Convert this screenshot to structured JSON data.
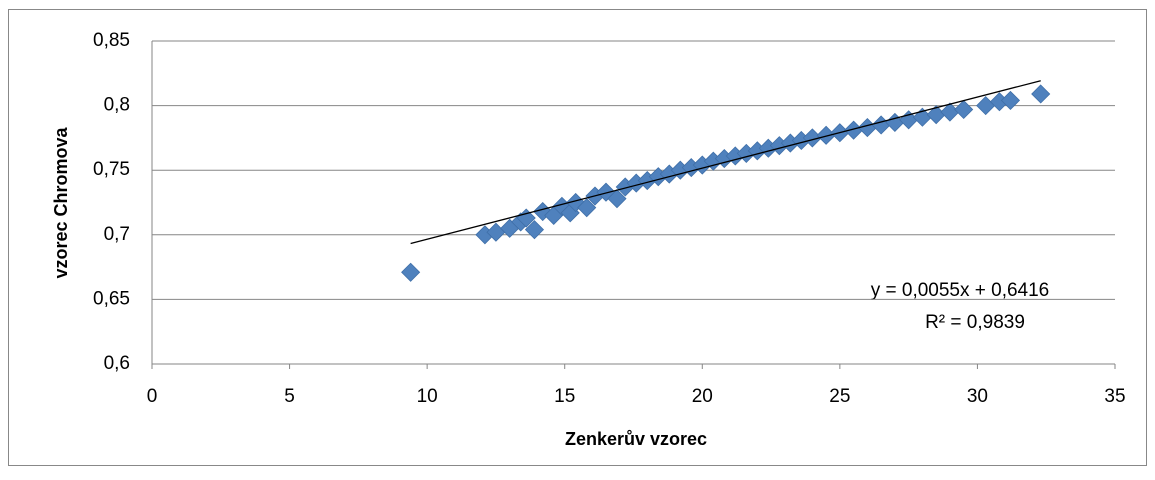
{
  "chart_data": {
    "type": "scatter",
    "xlabel": "Zenkerův vzorec",
    "ylabel": "vzorec Chromova",
    "series": [
      {
        "color": "#4f81bd",
        "x": [
          9.4,
          12.1,
          12.5,
          13.0,
          13.4,
          13.6,
          13.9,
          14.2,
          14.6,
          14.9,
          15.2,
          15.4,
          15.8,
          16.1,
          16.5,
          16.9,
          17.2,
          17.6,
          18.0,
          18.4,
          18.8,
          19.2,
          19.6,
          20.0,
          20.4,
          20.8,
          21.2,
          21.6,
          22.0,
          22.4,
          22.8,
          23.2,
          23.6,
          24.0,
          24.5,
          25.0,
          25.5,
          26.0,
          26.5,
          27.0,
          27.5,
          28.0,
          28.5,
          29.0,
          29.5,
          30.3,
          30.8,
          31.2,
          32.3
        ],
        "values": [
          0.671,
          0.7,
          0.702,
          0.705,
          0.71,
          0.713,
          0.704,
          0.718,
          0.715,
          0.722,
          0.717,
          0.725,
          0.721,
          0.73,
          0.733,
          0.728,
          0.737,
          0.74,
          0.742,
          0.745,
          0.747,
          0.75,
          0.752,
          0.754,
          0.757,
          0.759,
          0.761,
          0.763,
          0.765,
          0.767,
          0.769,
          0.771,
          0.773,
          0.775,
          0.777,
          0.779,
          0.781,
          0.783,
          0.785,
          0.787,
          0.789,
          0.791,
          0.793,
          0.795,
          0.797,
          0.8,
          0.803,
          0.804,
          0.809
        ]
      }
    ],
    "trendline": {
      "slope": 0.0055,
      "intercept": 0.6416,
      "xrange": [
        9.4,
        32.3
      ],
      "color": "#000000",
      "equation": "y = 0,0055x + 0,6416",
      "r2": "R² = 0,9839"
    },
    "xlim": [
      0,
      35
    ],
    "xticks": [
      0,
      5,
      10,
      15,
      20,
      25,
      30,
      35
    ],
    "ylim": [
      0.6,
      0.85
    ],
    "yticks": [
      {
        "value": 0.6,
        "label": "0,6"
      },
      {
        "value": 0.65,
        "label": "0,65"
      },
      {
        "value": 0.7,
        "label": "0,7"
      },
      {
        "value": 0.75,
        "label": "0,75"
      },
      {
        "value": 0.8,
        "label": "0,8"
      },
      {
        "value": 0.85,
        "label": "0,85"
      }
    ],
    "grid": true
  }
}
